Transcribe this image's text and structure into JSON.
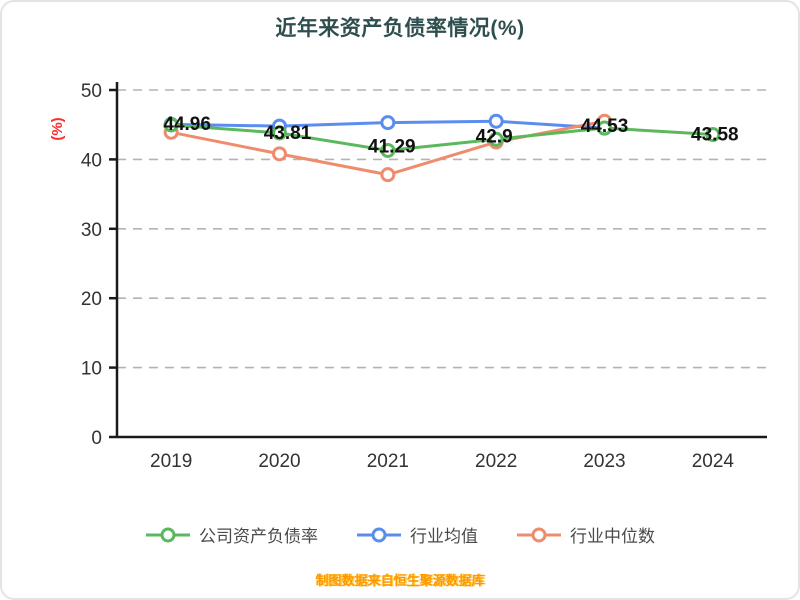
{
  "title": "近年来资产负债率情况(%)",
  "footer": "制图数据来自恒生聚源数据库",
  "colors": {
    "title": "#2f4f4f",
    "axis": "#1a1a1a",
    "grid": "#b3b3b3",
    "ylabel": "#fe2c2c",
    "footer": "#ff9800",
    "tick": "#333333",
    "data_label": "#111111",
    "legend_text": "#4a4a4a"
  },
  "chart_data": {
    "type": "line",
    "categories": [
      "2019",
      "2020",
      "2021",
      "2022",
      "2023",
      "2024"
    ],
    "series": [
      {
        "name": "公司资产负债率",
        "color": "#5cb85c",
        "values": [
          44.96,
          43.81,
          41.29,
          42.9,
          44.53,
          43.58
        ]
      },
      {
        "name": "行业均值",
        "color": "#5b8def",
        "values": [
          45.05,
          44.8,
          45.3,
          45.5,
          44.5,
          null
        ]
      },
      {
        "name": "行业中位数",
        "color": "#f08c6e",
        "values": [
          43.9,
          40.8,
          37.8,
          42.5,
          45.5,
          null
        ]
      }
    ],
    "data_labels": [
      "44.96",
      "43.81",
      "41.29",
      "42.9",
      "44.53",
      "43.58"
    ],
    "ylabel": "(%)",
    "ylim": [
      0,
      50
    ],
    "yticks": [
      0,
      10,
      20,
      30,
      40,
      50
    ],
    "grid": "dashed-horizontal",
    "legend_position": "bottom"
  }
}
